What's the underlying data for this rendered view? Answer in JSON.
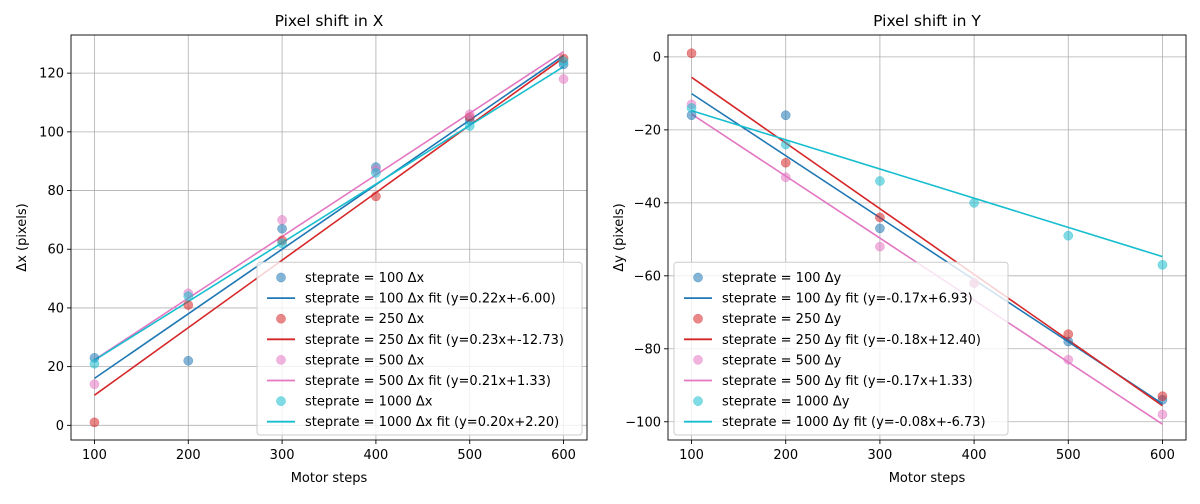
{
  "chart_data": [
    {
      "type": "scatter",
      "title": "Pixel shift in X",
      "xlabel": "Motor steps",
      "ylabel": "Δx (pixels)",
      "xlim": [
        75,
        625
      ],
      "ylim": [
        -5,
        133
      ],
      "xticks": [
        100,
        200,
        300,
        400,
        500,
        600
      ],
      "yticks": [
        0,
        20,
        40,
        60,
        80,
        100,
        120
      ],
      "grid": true,
      "legend_position": "lower-right",
      "x": [
        100,
        200,
        300,
        400,
        500,
        600
      ],
      "series": [
        {
          "name": "steprate = 100 Δx",
          "color": "#1f77b4",
          "values": [
            23,
            22,
            67,
            88,
            104,
            123
          ]
        },
        {
          "name": "steprate = 250 Δx",
          "color": "#d62728",
          "values": [
            1,
            41,
            63,
            78,
            105,
            125
          ]
        },
        {
          "name": "steprate = 500 Δx",
          "color": "#e377c2",
          "values": [
            14,
            45,
            70,
            87,
            106,
            118
          ]
        },
        {
          "name": "steprate = 1000 Δx",
          "color": "#17becf",
          "values": [
            21,
            44,
            62,
            86,
            102,
            124
          ]
        }
      ],
      "fits": [
        {
          "name": "steprate = 100 Δx fit (y=0.22x+-6.00)",
          "color": "#1f77b4",
          "slope": 0.22,
          "intercept": -6.0
        },
        {
          "name": "steprate = 250 Δx fit (y=0.23x+-12.73)",
          "color": "#d62728",
          "slope": 0.23,
          "intercept": -12.73
        },
        {
          "name": "steprate = 500 Δx fit (y=0.21x+1.33)",
          "color": "#e377c2",
          "slope": 0.21,
          "intercept": 1.33
        },
        {
          "name": "steprate = 1000 Δx fit (y=0.20x+2.20)",
          "color": "#17becf",
          "slope": 0.2,
          "intercept": 2.2
        }
      ]
    },
    {
      "type": "scatter",
      "title": "Pixel shift in Y",
      "xlabel": "Motor steps",
      "ylabel": "Δy (pixels)",
      "xlim": [
        75,
        625
      ],
      "ylim": [
        -105,
        6
      ],
      "xticks": [
        100,
        200,
        300,
        400,
        500,
        600
      ],
      "yticks": [
        0,
        -20,
        -40,
        -60,
        -80,
        -100
      ],
      "grid": true,
      "legend_position": "lower-left",
      "x": [
        100,
        200,
        300,
        400,
        500,
        600
      ],
      "series": [
        {
          "name": "steprate = 100 Δy",
          "color": "#1f77b4",
          "values": [
            -16,
            -16,
            -47,
            -62,
            -78,
            -94
          ]
        },
        {
          "name": "steprate = 250 Δy",
          "color": "#d62728",
          "values": [
            1,
            -29,
            -44,
            -62,
            -76,
            -93
          ]
        },
        {
          "name": "steprate = 500 Δy",
          "color": "#e377c2",
          "values": [
            -13,
            -33,
            -52,
            -62,
            -83,
            -98
          ]
        },
        {
          "name": "steprate = 1000 Δy",
          "color": "#17becf",
          "values": [
            -14,
            -24,
            -34,
            -40,
            -49,
            -57
          ]
        }
      ],
      "fits": [
        {
          "name": "steprate = 100 Δy fit (y=-0.17x+6.93)",
          "color": "#1f77b4",
          "slope": -0.17,
          "intercept": 6.93
        },
        {
          "name": "steprate = 250 Δy fit (y=-0.18x+12.40)",
          "color": "#d62728",
          "slope": -0.18,
          "intercept": 12.4
        },
        {
          "name": "steprate = 500 Δy fit (y=-0.17x+1.33)",
          "color": "#e377c2",
          "slope": -0.17,
          "intercept": 1.33
        },
        {
          "name": "steprate = 1000 Δy fit (y=-0.08x+-6.73)",
          "color": "#17becf",
          "slope": -0.08,
          "intercept": -6.73
        }
      ]
    }
  ]
}
